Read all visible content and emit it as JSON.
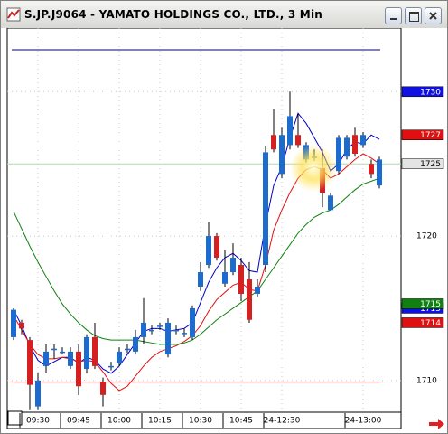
{
  "window": {
    "title": "S.JP.J9064 - YAMATO HOLDINGS CO., LTD., 3 Min"
  },
  "chart_data": {
    "type": "candlestick",
    "categories": [
      null,
      null,
      null,
      "09:30",
      null,
      null,
      null,
      null,
      "09:45",
      null,
      null,
      null,
      null,
      "10:00",
      null,
      null,
      null,
      null,
      "10:15",
      null,
      null,
      null,
      null,
      "10:30",
      null,
      null,
      null,
      null,
      "10:45",
      null,
      null,
      null,
      null,
      "24-12:30",
      null,
      null,
      null,
      null,
      null,
      null,
      null,
      null,
      null,
      "24-13:00",
      null,
      null
    ],
    "open": [
      1713.0,
      1714.0,
      1712.8,
      1708.2,
      1711.0,
      1712.2,
      1712.0,
      1711.0,
      1712.0,
      1710.8,
      1713.0,
      1709.9,
      1711.0,
      1711.2,
      1712.2,
      1712.0,
      1713.0,
      1713.5,
      1713.8,
      1711.8,
      1713.5,
      1713.3,
      1713.0,
      1716.5,
      1718.0,
      1720.0,
      1716.7,
      1717.5,
      1718.0,
      1717.0,
      1716.0,
      1718.0,
      1727.0,
      1724.3,
      1726.3,
      1727.0,
      1725.3,
      1725.5,
      1724.7,
      1721.8,
      1724.5,
      1725.5,
      1727.0,
      1726.3,
      1725.0,
      1723.5
    ],
    "high": [
      1715.0,
      1714.2,
      1713.0,
      1710.5,
      1712.5,
      1712.5,
      1712.3,
      1712.3,
      1712.5,
      1713.2,
      1714.0,
      1710.2,
      1711.3,
      1712.3,
      1712.5,
      1713.5,
      1715.7,
      1713.8,
      1714.0,
      1714.3,
      1713.8,
      1713.6,
      1715.2,
      1718.2,
      1721.0,
      1720.2,
      1719.0,
      1719.5,
      1718.5,
      1718.2,
      1717.0,
      1726.2,
      1728.8,
      1727.5,
      1730.0,
      1728.5,
      1726.5,
      1726.0,
      1726.0,
      1723.0,
      1727.0,
      1727.0,
      1727.5,
      1727.2,
      1725.3,
      1725.5
    ],
    "low": [
      1712.8,
      1713.2,
      1708.0,
      1708.0,
      1710.5,
      1711.5,
      1711.8,
      1710.8,
      1709.0,
      1710.5,
      1710.8,
      1708.2,
      1710.7,
      1711.0,
      1711.9,
      1711.8,
      1712.5,
      1713.2,
      1713.5,
      1711.6,
      1713.2,
      1713.0,
      1712.8,
      1716.2,
      1717.8,
      1718.3,
      1716.5,
      1717.3,
      1715.5,
      1714.0,
      1715.8,
      1717.5,
      1725.8,
      1724.0,
      1726.0,
      1726.1,
      1725.1,
      1725.2,
      1722.0,
      1721.8,
      1724.3,
      1725.3,
      1725.5,
      1726.1,
      1724.0,
      1723.3
    ],
    "close": [
      1714.9,
      1713.6,
      1709.7,
      1710.0,
      1712.0,
      1712.2,
      1712.0,
      1712.0,
      1709.6,
      1713.0,
      1711.0,
      1709.0,
      1711.0,
      1712.0,
      1712.2,
      1713.0,
      1714.0,
      1713.5,
      1713.8,
      1714.0,
      1713.5,
      1713.3,
      1715.0,
      1717.5,
      1720.0,
      1718.5,
      1717.5,
      1718.5,
      1716.0,
      1714.2,
      1716.5,
      1725.8,
      1726.0,
      1727.0,
      1728.3,
      1726.3,
      1726.3,
      1725.5,
      1723.0,
      1722.8,
      1726.8,
      1726.8,
      1725.7,
      1727.0,
      1724.3,
      1725.3
    ],
    "up_color": "#1c6cd0",
    "down_color": "#d42020",
    "moving_averages": [
      {
        "color": "#0000c8",
        "values": [
          1714.9,
          1713.8,
          1712.4,
          1711.4,
          1711.0,
          1711.3,
          1711.6,
          1711.6,
          1711.2,
          1711.6,
          1711.4,
          1710.8,
          1710.5,
          1711.0,
          1711.8,
          1712.6,
          1713.4,
          1713.6,
          1713.6,
          1713.4,
          1713.5,
          1713.6,
          1714.0,
          1715.4,
          1716.8,
          1717.8,
          1718.5,
          1718.8,
          1718.3,
          1717.6,
          1717.5,
          1720.8,
          1723.5,
          1724.8,
          1726.8,
          1728.5,
          1727.8,
          1726.8,
          1725.8,
          1724.5,
          1725.0,
          1726.0,
          1726.5,
          1726.4,
          1727.0,
          1726.7
        ]
      },
      {
        "color": "#e01010",
        "values": [
          1714.5,
          1713.5,
          1712.5,
          1711.8,
          1711.5,
          1711.5,
          1711.6,
          1711.5,
          1711.3,
          1711.4,
          1711.3,
          1710.6,
          1709.8,
          1709.3,
          1709.6,
          1710.3,
          1711.0,
          1711.6,
          1712.0,
          1712.2,
          1712.4,
          1712.7,
          1713.1,
          1713.8,
          1714.8,
          1715.6,
          1716.1,
          1716.6,
          1716.8,
          1716.3,
          1716.2,
          1718.0,
          1720.4,
          1721.8,
          1723.0,
          1724.0,
          1724.6,
          1724.8,
          1724.6,
          1724.0,
          1724.3,
          1724.8,
          1725.3,
          1725.7,
          1725.4,
          1725.0
        ]
      },
      {
        "color": "#108010",
        "values": [
          1721.7,
          1720.5,
          1719.3,
          1718.2,
          1717.2,
          1716.2,
          1715.3,
          1714.6,
          1714.0,
          1713.5,
          1713.1,
          1712.9,
          1712.8,
          1712.8,
          1712.8,
          1712.8,
          1712.7,
          1712.6,
          1712.5,
          1712.5,
          1712.5,
          1712.6,
          1712.8,
          1713.2,
          1713.7,
          1714.2,
          1714.6,
          1715.0,
          1715.4,
          1715.8,
          1716.2,
          1717.0,
          1717.8,
          1718.6,
          1719.4,
          1720.2,
          1720.8,
          1721.3,
          1721.6,
          1721.8,
          1722.2,
          1722.7,
          1723.2,
          1723.6,
          1723.8,
          1724.0
        ]
      }
    ],
    "reference_lines": [
      {
        "value": 1732.9,
        "color": "#000080"
      },
      {
        "value": 1709.9,
        "color": "#e00000"
      },
      {
        "value": 1725,
        "color": "#b0dcb0"
      }
    ],
    "price_badges": [
      {
        "value": 1730,
        "color": "#1010e0",
        "text_color": "#ffffff"
      },
      {
        "value": 1727,
        "color": "#e01010",
        "text_color": "#ffffff"
      },
      {
        "value": 1725,
        "color": "#e4e4e4",
        "text_color": "#000000"
      },
      {
        "value": 1715,
        "color": "#1010e0",
        "text_color": "#ffffff"
      },
      {
        "value": 1715,
        "color": "#108010",
        "text_color": "#ffffff"
      },
      {
        "value": 1714,
        "color": "#e01010",
        "text_color": "#ffffff"
      }
    ],
    "ylim": [
      1707.8,
      1734.4
    ],
    "yticks": [
      1710,
      1720,
      1730
    ],
    "grid": true
  }
}
